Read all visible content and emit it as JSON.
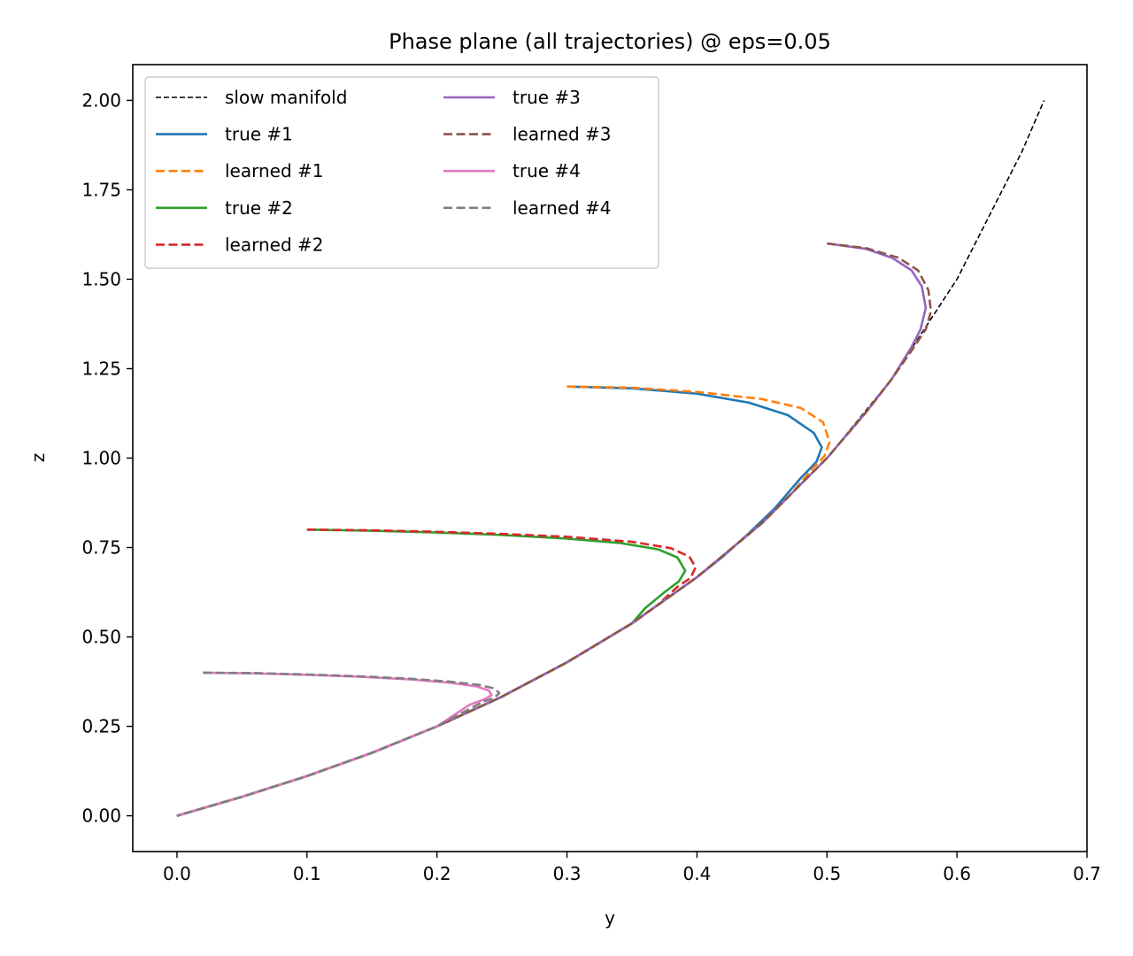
{
  "chart_data": {
    "type": "line",
    "title": "Phase plane (all trajectories) @ eps=0.05",
    "xlabel": "y",
    "ylabel": "z",
    "xlim": [
      -0.034,
      0.7
    ],
    "ylim": [
      -0.1,
      2.1
    ],
    "xticks": [
      "0.0",
      "0.1",
      "0.2",
      "0.3",
      "0.4",
      "0.5",
      "0.6",
      "0.7"
    ],
    "yticks": [
      "0.00",
      "0.25",
      "0.50",
      "0.75",
      "1.00",
      "1.25",
      "1.50",
      "1.75",
      "2.00"
    ],
    "xtick_values": [
      0.0,
      0.1,
      0.2,
      0.3,
      0.4,
      0.5,
      0.6,
      0.7
    ],
    "ytick_values": [
      0.0,
      0.25,
      0.5,
      0.75,
      1.0,
      1.25,
      1.5,
      1.75,
      2.0
    ],
    "grid": false,
    "legend_position": "upper-left",
    "legend_columns": 2,
    "series": [
      {
        "name": "slow manifold",
        "color": "#000000",
        "dash": "dashed-fine",
        "linewidth": 1.6,
        "x": [
          0.0,
          0.05,
          0.1,
          0.15,
          0.2,
          0.25,
          0.3,
          0.35,
          0.4,
          0.45,
          0.5,
          0.55,
          0.6,
          0.65,
          0.667
        ],
        "y": [
          0.0,
          0.053,
          0.111,
          0.176,
          0.25,
          0.333,
          0.429,
          0.538,
          0.667,
          0.818,
          1.0,
          1.222,
          1.5,
          1.857,
          2.0
        ]
      },
      {
        "name": "true #1",
        "color": "#1f77b4",
        "dash": "solid",
        "linewidth": 2.6,
        "x": [
          0.3,
          0.35,
          0.4,
          0.44,
          0.47,
          0.49,
          0.496,
          0.492,
          0.48,
          0.46,
          0.44,
          0.42,
          0.4,
          0.35,
          0.3,
          0.25,
          0.2,
          0.15,
          0.1,
          0.05,
          0.0
        ],
        "y": [
          1.2,
          1.195,
          1.18,
          1.155,
          1.12,
          1.07,
          1.03,
          0.99,
          0.945,
          0.86,
          0.79,
          0.725,
          0.667,
          0.538,
          0.429,
          0.333,
          0.25,
          0.176,
          0.111,
          0.053,
          0.0
        ]
      },
      {
        "name": "learned #1",
        "color": "#ff7f0e",
        "dash": "dashed",
        "linewidth": 2.6,
        "x": [
          0.3,
          0.35,
          0.4,
          0.45,
          0.48,
          0.497,
          0.502,
          0.498,
          0.49,
          0.47,
          0.45,
          0.4,
          0.35,
          0.3,
          0.25,
          0.2,
          0.15,
          0.1,
          0.05,
          0.0
        ],
        "y": [
          1.2,
          1.197,
          1.185,
          1.165,
          1.14,
          1.1,
          1.045,
          1.005,
          0.975,
          0.89,
          0.818,
          0.667,
          0.538,
          0.429,
          0.333,
          0.25,
          0.176,
          0.111,
          0.053,
          0.0
        ]
      },
      {
        "name": "true #2",
        "color": "#2ca02c",
        "dash": "solid",
        "linewidth": 2.6,
        "x": [
          0.1,
          0.15,
          0.2,
          0.25,
          0.3,
          0.34,
          0.37,
          0.385,
          0.391,
          0.386,
          0.375,
          0.36,
          0.35,
          0.3,
          0.25,
          0.2,
          0.15,
          0.1,
          0.05,
          0.0
        ],
        "y": [
          0.8,
          0.797,
          0.792,
          0.785,
          0.775,
          0.763,
          0.745,
          0.722,
          0.685,
          0.655,
          0.625,
          0.58,
          0.538,
          0.429,
          0.333,
          0.25,
          0.176,
          0.111,
          0.053,
          0.0
        ]
      },
      {
        "name": "learned #2",
        "color": "#d62728",
        "dash": "dashed",
        "linewidth": 2.6,
        "x": [
          0.1,
          0.15,
          0.2,
          0.25,
          0.3,
          0.35,
          0.38,
          0.394,
          0.399,
          0.395,
          0.385,
          0.37,
          0.35,
          0.3,
          0.25,
          0.2,
          0.15,
          0.1,
          0.05,
          0.0
        ],
        "y": [
          0.8,
          0.798,
          0.794,
          0.788,
          0.78,
          0.766,
          0.748,
          0.725,
          0.695,
          0.665,
          0.64,
          0.59,
          0.538,
          0.429,
          0.333,
          0.25,
          0.176,
          0.111,
          0.053,
          0.0
        ]
      },
      {
        "name": "true #3",
        "color": "#9467bd",
        "dash": "solid",
        "linewidth": 2.6,
        "x": [
          0.5,
          0.53,
          0.55,
          0.565,
          0.573,
          0.576,
          0.572,
          0.565,
          0.55,
          0.53,
          0.5,
          0.45,
          0.4,
          0.35,
          0.3,
          0.25,
          0.2,
          0.15,
          0.1,
          0.05,
          0.0
        ],
        "y": [
          1.6,
          1.585,
          1.56,
          1.525,
          1.48,
          1.42,
          1.36,
          1.31,
          1.222,
          1.128,
          1.0,
          0.818,
          0.667,
          0.538,
          0.429,
          0.333,
          0.25,
          0.176,
          0.111,
          0.053,
          0.0
        ]
      },
      {
        "name": "learned #3",
        "color": "#8c564b",
        "dash": "dashed",
        "linewidth": 2.6,
        "x": [
          0.5,
          0.53,
          0.555,
          0.57,
          0.578,
          0.58,
          0.576,
          0.565,
          0.55,
          0.53,
          0.5,
          0.45,
          0.4,
          0.35,
          0.3,
          0.25,
          0.2,
          0.15,
          0.1,
          0.05,
          0.0
        ],
        "y": [
          1.6,
          1.587,
          1.56,
          1.525,
          1.47,
          1.41,
          1.36,
          1.3,
          1.222,
          1.128,
          1.0,
          0.818,
          0.667,
          0.538,
          0.429,
          0.333,
          0.25,
          0.176,
          0.111,
          0.053,
          0.0
        ]
      },
      {
        "name": "true #4",
        "color": "#e377c2",
        "dash": "solid",
        "linewidth": 2.6,
        "x": [
          0.02,
          0.06,
          0.1,
          0.14,
          0.18,
          0.21,
          0.23,
          0.24,
          0.242,
          0.236,
          0.225,
          0.2,
          0.15,
          0.1,
          0.05,
          0.0
        ],
        "y": [
          0.4,
          0.398,
          0.394,
          0.389,
          0.381,
          0.372,
          0.362,
          0.35,
          0.337,
          0.325,
          0.31,
          0.25,
          0.176,
          0.111,
          0.053,
          0.0
        ]
      },
      {
        "name": "learned #4",
        "color": "#7f7f7f",
        "dash": "dashed",
        "linewidth": 2.6,
        "x": [
          0.02,
          0.06,
          0.1,
          0.14,
          0.18,
          0.21,
          0.232,
          0.244,
          0.248,
          0.244,
          0.235,
          0.2,
          0.15,
          0.1,
          0.05,
          0.0
        ],
        "y": [
          0.4,
          0.399,
          0.395,
          0.39,
          0.383,
          0.375,
          0.366,
          0.356,
          0.343,
          0.33,
          0.318,
          0.25,
          0.176,
          0.111,
          0.053,
          0.0
        ]
      }
    ]
  }
}
